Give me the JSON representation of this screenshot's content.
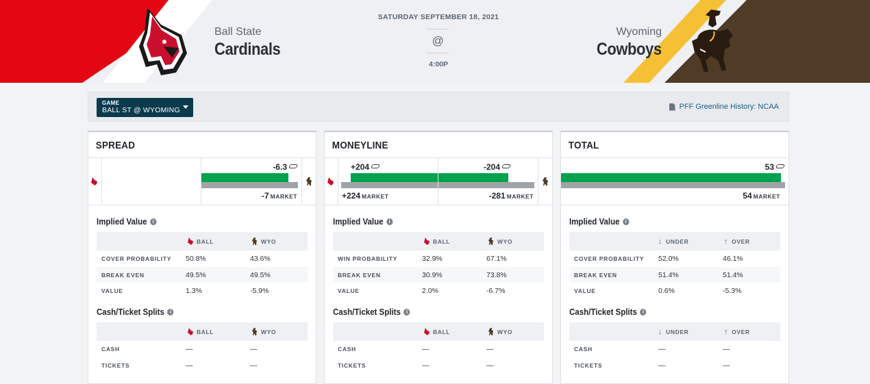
{
  "header": {
    "home_school": "Ball State",
    "home_name": "Cardinals",
    "away_school": "Wyoming",
    "away_name": "Cowboys",
    "date": "SATURDAY SEPTEMBER 18, 2021",
    "at_symbol": "@",
    "time": "4:00P",
    "colors": {
      "home_primary": "#e30613",
      "away_primary": "#4f3b26",
      "away_accent": "#f5c035"
    }
  },
  "toolbar": {
    "game_label": "GAME",
    "game_value": "BALL ST @ WYOMING",
    "history_link": "PFF Greenline History: NCAA"
  },
  "spread": {
    "title": "SPREAD",
    "pff_line": "-6.3",
    "pff_line_fraction_of_column": 0.88,
    "market_line": "-7",
    "market_tag": "MARKET",
    "implied_title": "Implied Value",
    "implied_headers": [
      "BALL",
      "WYO"
    ],
    "implied_rows": [
      {
        "label": "COVER PROBABILITY",
        "a": "50.8%",
        "b": "43.6%"
      },
      {
        "label": "BREAK EVEN",
        "a": "49.5%",
        "b": "49.5%"
      },
      {
        "label": "VALUE",
        "a": "1.3%",
        "b": "-5.9%"
      }
    ],
    "splits_title": "Cash/Ticket Splits",
    "splits_headers": [
      "BALL",
      "WYO"
    ],
    "splits_rows": [
      {
        "label": "CASH",
        "a": "—",
        "b": "—"
      },
      {
        "label": "TICKETS",
        "a": "—",
        "b": "—"
      }
    ]
  },
  "moneyline": {
    "title": "MONEYLINE",
    "home_pff": "+204",
    "home_market": "+224",
    "away_pff": "-204",
    "away_market": "-281",
    "market_tag": "MARKET",
    "implied_title": "Implied Value",
    "implied_headers": [
      "BALL",
      "WYO"
    ],
    "implied_rows": [
      {
        "label": "WIN PROBABILITY",
        "a": "32.9%",
        "b": "67.1%"
      },
      {
        "label": "BREAK EVEN",
        "a": "30.9%",
        "b": "73.8%"
      },
      {
        "label": "VALUE",
        "a": "2.0%",
        "b": "-6.7%"
      }
    ],
    "splits_title": "Cash/Ticket Splits",
    "splits_headers": [
      "BALL",
      "WYO"
    ],
    "splits_rows": [
      {
        "label": "CASH",
        "a": "—",
        "b": "—"
      },
      {
        "label": "TICKETS",
        "a": "—",
        "b": "—"
      }
    ]
  },
  "total": {
    "title": "TOTAL",
    "pff_line": "53",
    "market_line": "54",
    "market_tag": "MARKET",
    "implied_title": "Implied Value",
    "implied_headers": [
      "UNDER",
      "OVER"
    ],
    "implied_rows": [
      {
        "label": "COVER PROBABILITY",
        "a": "52.0%",
        "b": "46.1%"
      },
      {
        "label": "BREAK EVEN",
        "a": "51.4%",
        "b": "51.4%"
      },
      {
        "label": "VALUE",
        "a": "0.6%",
        "b": "-5.3%"
      }
    ],
    "splits_title": "Cash/Ticket Splits",
    "splits_headers": [
      "UNDER",
      "OVER"
    ],
    "splits_rows": [
      {
        "label": "CASH",
        "a": "—",
        "b": "—"
      },
      {
        "label": "TICKETS",
        "a": "—",
        "b": "—"
      }
    ]
  }
}
